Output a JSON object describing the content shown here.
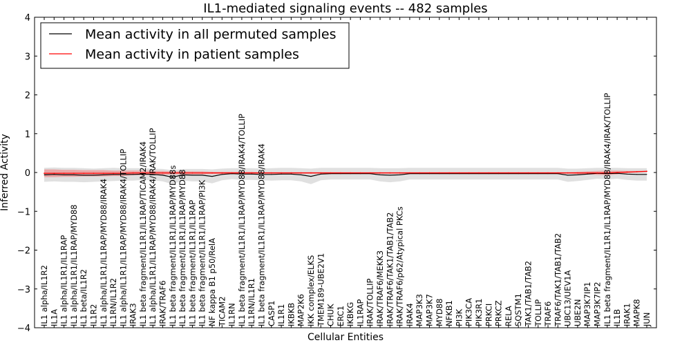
{
  "chart_data": {
    "type": "line",
    "title": "IL1-mediated signaling events -- 482 samples",
    "xlabel": "Cellular Entities",
    "ylabel": "Inferred Activity",
    "ylim": [
      -4,
      4
    ],
    "yticks": [
      -4,
      -3,
      -2,
      -1,
      0,
      1,
      2,
      3,
      4
    ],
    "legend": {
      "placement": "top-left",
      "entries": [
        {
          "label": "Mean activity in all permuted samples",
          "color": "#000000"
        },
        {
          "label": "Mean activity in patient samples",
          "color": "#ff0000"
        }
      ]
    },
    "categories": [
      "IL1 alpha/IL1R2",
      "IL1A",
      "IL1 alpha/IL1R1/IL1RAP",
      "IL1 alpha/IL1R1/IL1RAP/MYD88",
      "IL1 beta/IL1R2",
      "IL1R2",
      "IL1 alpha/IL1R1/IL1RAP/MYD88/IRAK4",
      "IL1RN/IL1R2",
      "IL1 alpha/IL1R1/IL1RAP/MYD88/IRAK4/TOLLIP",
      "IRAK3",
      "IL1 beta fragment/IL1R1/IL1RAP/TICAM2/IRAK4",
      "IL1 alpha/IL1R1/IL1RAP/MYD88/IRAK4/IRAK/TOLLIP",
      "IRAK/TRAF6",
      "IL1 beta fragment/IL1R1/IL1RAP/MYD88s",
      "IL1 beta fragment/IL1R1/IL1RAP/MYD88",
      "IL1 beta fragment/IL1R1/IL1RAP",
      "IL1 beta fragment/IL1R1/IL1RAP/PI3K",
      "NF kappa B1 p50/RelA",
      "TICAM2",
      "IL1RN",
      "IL1 beta fragment/IL1R1/IL1RAP/MYD88/IRAK4/TOLLIP",
      "IL1RN/IL1R1",
      "IL1 beta fragment/IL1R1/IL1RAP/MYD88/IRAK4",
      "CASP1",
      "IL1R1",
      "IKBKB",
      "MAP2K6",
      "IKK complex/ELKS",
      "TMEM189-UBE2V1",
      "CHUK",
      "ERC1",
      "IKBKG",
      "IL1RAP",
      "IRAK/TOLLIP",
      "IRAK/TRAF6/MEKK3",
      "IRAK/TRAF6/TAK1/TAB1/TAB2",
      "IRAK/TRAF6/p62/Atypical PKCs",
      "IRAK4",
      "MAP3K3",
      "MAP3K7",
      "MYD88",
      "NFKB1",
      "PI3K",
      "PIK3CA",
      "PIK3R1",
      "PRKCI",
      "PRKCZ",
      "RELA",
      "SQSTM1",
      "TAK1/TAB1/TAB2",
      "TOLLIP",
      "TRAF6",
      "TRAF6/TAK1/TAB1/TAB2",
      "UBC13/UEV1A",
      "UBE2N",
      "MAP3K7IP1",
      "MAP3K7IP2",
      "IL1 beta fragment/IL1R1/IL1RAP/MYD88/IRAK4/IRAK/TOLLIP",
      "IL1B",
      "IRAK1",
      "MAPK8",
      "JUN"
    ],
    "series": [
      {
        "name": "Mean activity in all permuted samples",
        "color": "#000000",
        "values": [
          -0.06,
          -0.05,
          -0.06,
          -0.06,
          -0.07,
          -0.07,
          -0.06,
          -0.05,
          -0.05,
          -0.05,
          -0.04,
          -0.05,
          -0.07,
          -0.12,
          -0.06,
          -0.07,
          -0.07,
          -0.1,
          -0.05,
          -0.03,
          -0.04,
          -0.04,
          -0.05,
          -0.05,
          -0.04,
          -0.04,
          -0.06,
          -0.1,
          -0.04,
          -0.03,
          -0.03,
          -0.03,
          -0.03,
          -0.03,
          -0.06,
          -0.07,
          -0.06,
          -0.03,
          -0.03,
          -0.03,
          -0.03,
          -0.03,
          -0.03,
          -0.03,
          -0.03,
          -0.03,
          -0.03,
          -0.03,
          -0.03,
          -0.03,
          -0.03,
          -0.03,
          -0.03,
          -0.07,
          -0.06,
          -0.04,
          -0.02,
          -0.03,
          -0.02,
          -0.04,
          -0.05,
          -0.05
        ],
        "band": [
          0.18,
          0.18,
          0.18,
          0.18,
          0.18,
          0.17,
          0.17,
          0.17,
          0.16,
          0.16,
          0.15,
          0.15,
          0.16,
          0.18,
          0.15,
          0.16,
          0.16,
          0.18,
          0.15,
          0.14,
          0.15,
          0.15,
          0.15,
          0.16,
          0.16,
          0.16,
          0.17,
          0.2,
          0.16,
          0.15,
          0.15,
          0.15,
          0.15,
          0.15,
          0.17,
          0.18,
          0.17,
          0.15,
          0.15,
          0.15,
          0.15,
          0.15,
          0.15,
          0.15,
          0.15,
          0.15,
          0.15,
          0.15,
          0.15,
          0.15,
          0.15,
          0.15,
          0.15,
          0.17,
          0.16,
          0.15,
          0.14,
          0.15,
          0.14,
          0.15,
          0.16,
          0.16
        ]
      },
      {
        "name": "Mean activity in patient samples",
        "color": "#ff0000",
        "values": [
          -0.02,
          -0.02,
          -0.02,
          -0.02,
          -0.02,
          -0.02,
          -0.02,
          -0.02,
          -0.02,
          -0.01,
          -0.01,
          -0.01,
          -0.01,
          -0.01,
          -0.01,
          -0.01,
          -0.01,
          -0.01,
          -0.01,
          -0.01,
          -0.01,
          -0.01,
          -0.01,
          -0.01,
          -0.01,
          -0.01,
          -0.01,
          -0.01,
          -0.01,
          -0.01,
          -0.01,
          -0.01,
          -0.01,
          -0.01,
          -0.01,
          -0.01,
          -0.01,
          -0.01,
          -0.01,
          -0.01,
          -0.01,
          -0.01,
          -0.01,
          -0.01,
          -0.01,
          -0.01,
          -0.01,
          -0.01,
          -0.01,
          -0.01,
          -0.01,
          -0.01,
          -0.01,
          -0.01,
          -0.01,
          -0.01,
          -0.01,
          -0.01,
          0.0,
          0.01,
          0.02,
          0.03
        ],
        "band": [
          0.1,
          0.1,
          0.09,
          0.09,
          0.08,
          0.08,
          0.08,
          0.07,
          0.07,
          0.06,
          0.06,
          0.05,
          0.05,
          0.04,
          0.04,
          0.04,
          0.04,
          0.03,
          0.03,
          0.03,
          0.03,
          0.03,
          0.02,
          0.02,
          0.02,
          0.02,
          0.02,
          0.02,
          0.02,
          0.02,
          0.02,
          0.02,
          0.02,
          0.02,
          0.02,
          0.02,
          0.02,
          0.02,
          0.02,
          0.02,
          0.02,
          0.02,
          0.02,
          0.02,
          0.02,
          0.02,
          0.02,
          0.02,
          0.02,
          0.02,
          0.02,
          0.02,
          0.02,
          0.02,
          0.03,
          0.04,
          0.05,
          0.06,
          0.05,
          0.03,
          0.02,
          0.02
        ]
      }
    ]
  }
}
